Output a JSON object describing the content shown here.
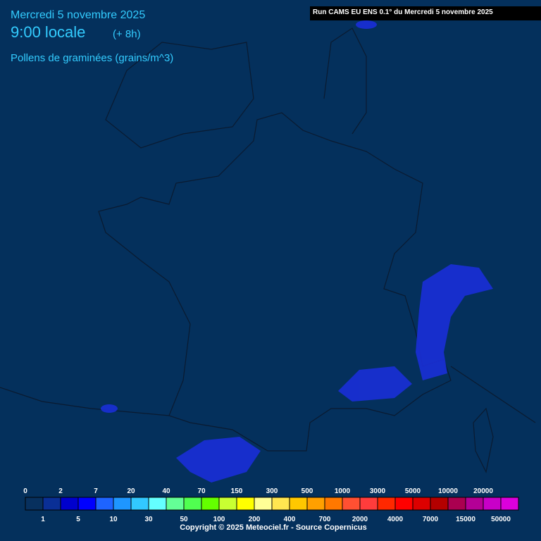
{
  "header": {
    "date": "Mercredi 5 novembre 2025",
    "time": "9:00 locale",
    "offset": "(+ 8h)",
    "parameter": "Pollens de graminées (grains/m^3)"
  },
  "run": "Run CAMS EU ENS 0.1° du Mercredi 5 novembre 2025",
  "legend": {
    "labels": [
      0,
      1,
      2,
      5,
      7,
      10,
      20,
      30,
      40,
      50,
      70,
      100,
      150,
      200,
      300,
      400,
      500,
      700,
      1000,
      2000,
      3000,
      4000,
      5000,
      7000,
      10000,
      15000,
      20000,
      50000
    ],
    "colors": [
      "#07305e",
      "#0a2f96",
      "#0000cd",
      "#0000ff",
      "#1e64ff",
      "#1e96ff",
      "#32c8ff",
      "#64ffff",
      "#64ff96",
      "#50ff50",
      "#64ff00",
      "#c8ff32",
      "#ffff00",
      "#ffff96",
      "#ffe650",
      "#ffc800",
      "#ffa000",
      "#ff7800",
      "#ff5032",
      "#ff3c3c",
      "#ff2800",
      "#ff0000",
      "#dc0000",
      "#b40000",
      "#aa0050",
      "#b40096",
      "#c800c8",
      "#dc00dc"
    ]
  },
  "copyright": "Copyright © 2025 Meteociel.fr - Source Copernicus"
}
